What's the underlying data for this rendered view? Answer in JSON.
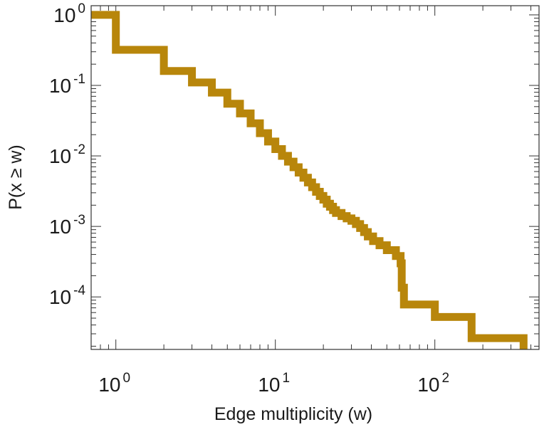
{
  "chart_data": {
    "type": "line",
    "step": true,
    "title": "",
    "xlabel": "Edge multiplicity (w)",
    "ylabel": "P(x ≥ w)",
    "xscale": "log",
    "yscale": "log",
    "xlim": [
      0.7,
      450
    ],
    "ylim": [
      1.8e-05,
      1.35
    ],
    "grid": false,
    "legend": "none",
    "line_color": "#b8860b",
    "x_major_ticks": [
      {
        "value": 1,
        "base": "10",
        "exp": "0"
      },
      {
        "value": 10,
        "base": "10",
        "exp": "1"
      },
      {
        "value": 100,
        "base": "10",
        "exp": "2"
      }
    ],
    "y_major_ticks": [
      {
        "value": 1,
        "base": "10",
        "exp": "0"
      },
      {
        "value": 0.1,
        "base": "10",
        "exp": "-1"
      },
      {
        "value": 0.01,
        "base": "10",
        "exp": "-2"
      },
      {
        "value": 0.001,
        "base": "10",
        "exp": "-3"
      },
      {
        "value": 0.0001,
        "base": "10",
        "exp": "-4"
      }
    ],
    "series": [
      {
        "points": [
          [
            0.7,
            1.0
          ],
          [
            1,
            1.0
          ],
          [
            1,
            0.32
          ],
          [
            2,
            0.32
          ],
          [
            2,
            0.16
          ],
          [
            3,
            0.16
          ],
          [
            3,
            0.11
          ],
          [
            4,
            0.11
          ],
          [
            4,
            0.079
          ],
          [
            5,
            0.079
          ],
          [
            5,
            0.055
          ],
          [
            6,
            0.055
          ],
          [
            6,
            0.04
          ],
          [
            7,
            0.04
          ],
          [
            7,
            0.029
          ],
          [
            8,
            0.029
          ],
          [
            8,
            0.021
          ],
          [
            9,
            0.021
          ],
          [
            9,
            0.016
          ],
          [
            10,
            0.016
          ],
          [
            10,
            0.0125
          ],
          [
            11,
            0.0125
          ],
          [
            11,
            0.01
          ],
          [
            12,
            0.01
          ],
          [
            12,
            0.0083
          ],
          [
            13,
            0.0083
          ],
          [
            13,
            0.0069
          ],
          [
            14,
            0.0069
          ],
          [
            14,
            0.0058
          ],
          [
            15,
            0.0058
          ],
          [
            15,
            0.0049
          ],
          [
            16,
            0.0049
          ],
          [
            16,
            0.0042
          ],
          [
            17,
            0.0042
          ],
          [
            17,
            0.0036
          ],
          [
            18,
            0.0036
          ],
          [
            18,
            0.0031
          ],
          [
            19,
            0.0031
          ],
          [
            19,
            0.0027
          ],
          [
            20,
            0.0027
          ],
          [
            20,
            0.0024
          ],
          [
            21,
            0.0024
          ],
          [
            21,
            0.0021
          ],
          [
            22,
            0.0021
          ],
          [
            22,
            0.0019
          ],
          [
            23,
            0.0019
          ],
          [
            23,
            0.0017
          ],
          [
            24,
            0.0017
          ],
          [
            24,
            0.00155
          ],
          [
            26,
            0.00155
          ],
          [
            26,
            0.0014
          ],
          [
            28,
            0.0014
          ],
          [
            28,
            0.0013
          ],
          [
            30,
            0.0013
          ],
          [
            30,
            0.0012
          ],
          [
            32,
            0.0012
          ],
          [
            32,
            0.00108
          ],
          [
            34,
            0.00108
          ],
          [
            34,
            0.00095
          ],
          [
            36,
            0.00095
          ],
          [
            36,
            0.00083
          ],
          [
            38,
            0.00083
          ],
          [
            38,
            0.00072
          ],
          [
            41,
            0.00072
          ],
          [
            41,
            0.00062
          ],
          [
            45,
            0.00062
          ],
          [
            45,
            0.00054
          ],
          [
            50,
            0.00054
          ],
          [
            50,
            0.00046
          ],
          [
            57,
            0.00046
          ],
          [
            57,
            0.00038
          ],
          [
            61,
            0.00038
          ],
          [
            61,
            0.0003
          ],
          [
            62,
            0.0003
          ],
          [
            62,
            0.000135
          ],
          [
            64,
            0.000135
          ],
          [
            64,
            7.8e-05
          ],
          [
            100,
            7.8e-05
          ],
          [
            100,
            5.2e-05
          ],
          [
            170,
            5.2e-05
          ],
          [
            170,
            2.6e-05
          ],
          [
            360,
            2.6e-05
          ],
          [
            360,
            1.8e-05
          ]
        ]
      }
    ]
  }
}
